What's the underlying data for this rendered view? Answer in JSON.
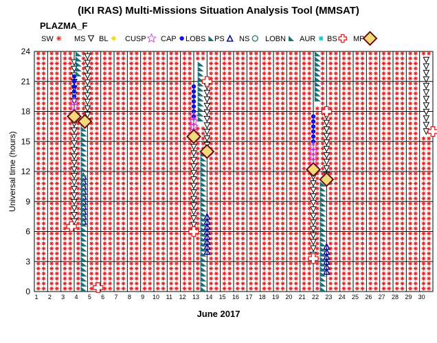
{
  "chart_data": {
    "type": "scatter",
    "title": "(IKI RAS) Multi-Missions Situation Analysis Tool (MMSAT)",
    "subtitle": "PLAZMA_F",
    "xlabel": "June 2017",
    "ylabel": "Universal time (hours)",
    "x_ticks": [
      "1",
      "2",
      "3",
      "4",
      "5",
      "6",
      "7",
      "8",
      "9",
      "10",
      "11",
      "12",
      "13",
      "14",
      "15",
      "16",
      "17",
      "18",
      "19",
      "20",
      "21",
      "22",
      "23",
      "24",
      "25",
      "26",
      "27",
      "28",
      "29",
      "30"
    ],
    "xlim": [
      1,
      31
    ],
    "ylim": [
      0,
      24
    ],
    "y_ticks": [
      0,
      3,
      6,
      9,
      12,
      15,
      18,
      21,
      24
    ],
    "grid": true,
    "legend_position": "top",
    "legend": [
      {
        "code": "SW",
        "label": "SW",
        "color": "#e02020",
        "marker": "asterisk"
      },
      {
        "code": "MS",
        "label": "MS",
        "color": "#000000",
        "marker": "triangle-down"
      },
      {
        "code": "BL",
        "label": "BL",
        "color": "#f0e020",
        "marker": "dot"
      },
      {
        "code": "CUSP",
        "label": "CUSP",
        "color": "#e040e0",
        "marker": "star"
      },
      {
        "code": "CAP",
        "label": "CAP",
        "color": "#1010e0",
        "marker": "dot"
      },
      {
        "code": "LOBS",
        "label": "LOBS",
        "color": "#1f6f78",
        "marker": "wedge"
      },
      {
        "code": "PS",
        "label": "PS",
        "color": "#1010a0",
        "marker": "triangle-up"
      },
      {
        "code": "NS",
        "label": "NS",
        "color": "#108060",
        "marker": "circle"
      },
      {
        "code": "LOBN",
        "label": "LOBN",
        "color": "#1f6f78",
        "marker": "wedge"
      },
      {
        "code": "AUR",
        "label": "AUR",
        "color": "#20d0d0",
        "marker": "square"
      },
      {
        "code": "BS",
        "label": "BS",
        "color": "#e02020",
        "marker": "cross"
      },
      {
        "code": "MP",
        "label": "MP",
        "color": "#6a0d10",
        "marker": "diamond"
      }
    ],
    "series": [
      {
        "code": "SW",
        "points": "1-30 all day except orbit passes"
      },
      {
        "code": "MS",
        "points": [
          {
            "day": 4,
            "from": 7,
            "to": 17
          },
          {
            "day": 4,
            "from": 19,
            "to": 23.5
          },
          {
            "day": 5,
            "from": 17,
            "to": 23.5
          },
          {
            "day": 13,
            "from": 6,
            "to": 15
          },
          {
            "day": 14,
            "from": 14,
            "to": 21
          },
          {
            "day": 22,
            "from": 3,
            "to": 12
          },
          {
            "day": 23,
            "from": 11,
            "to": 18
          },
          {
            "day": 30.5,
            "from": 16,
            "to": 23.5
          }
        ]
      },
      {
        "code": "CAP",
        "points": [
          {
            "day": 4,
            "from": 19.5,
            "to": 21.5
          },
          {
            "day": 13,
            "from": 17.5,
            "to": 20.5
          },
          {
            "day": 22,
            "from": 15,
            "to": 17.5
          }
        ]
      },
      {
        "code": "CUSP",
        "points": [
          {
            "day": 4,
            "from": 18.5,
            "to": 19
          },
          {
            "day": 13,
            "from": 16,
            "to": 17.5
          },
          {
            "day": 22,
            "from": 12.5,
            "to": 14.5
          }
        ]
      },
      {
        "code": "PS",
        "points": [
          {
            "day": 4.7,
            "from": 7,
            "to": 11.5
          },
          {
            "day": 14,
            "from": 4,
            "to": 7.5
          },
          {
            "day": 23,
            "from": 2,
            "to": 4.5
          }
        ]
      },
      {
        "code": "LOBN",
        "points": [
          {
            "day": 4.3,
            "from": 21.5,
            "to": 24
          },
          {
            "day": 13.5,
            "from": 17,
            "to": 23
          },
          {
            "day": 22.3,
            "from": 19,
            "to": 24
          }
        ]
      },
      {
        "code": "LOBS",
        "points": [
          {
            "day": 4.7,
            "from": 0,
            "to": 17
          },
          {
            "day": 13.7,
            "from": 0,
            "to": 14
          },
          {
            "day": 22.7,
            "from": 0,
            "to": 11
          }
        ]
      },
      {
        "code": "MP",
        "points": [
          {
            "day": 4,
            "ut": 17.5
          },
          {
            "day": 4.8,
            "ut": 17
          },
          {
            "day": 13,
            "ut": 15.5
          },
          {
            "day": 14,
            "ut": 14
          },
          {
            "day": 22,
            "ut": 12.2
          },
          {
            "day": 23,
            "ut": 11.2
          }
        ]
      },
      {
        "code": "BS",
        "points": [
          {
            "day": 3.8,
            "ut": 6.5
          },
          {
            "day": 5.8,
            "ut": 0.4
          },
          {
            "day": 13,
            "ut": 6
          },
          {
            "day": 14,
            "ut": 21
          },
          {
            "day": 22,
            "ut": 3.3
          },
          {
            "day": 23,
            "ut": 18
          },
          {
            "day": 31,
            "ut": 16
          }
        ]
      }
    ]
  }
}
